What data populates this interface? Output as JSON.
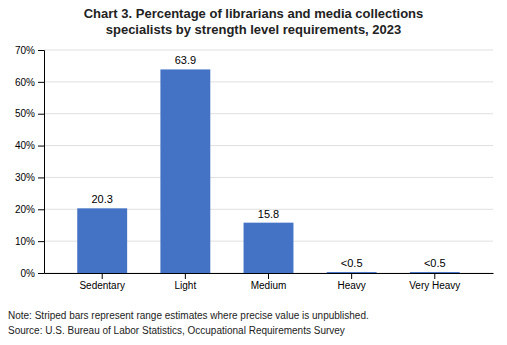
{
  "chart_data": {
    "type": "bar",
    "title": "Chart 3. Percentage of librarians and media collections\nspecialists by strength level requirements, 2023",
    "categories": [
      "Sedentary",
      "Light",
      "Medium",
      "Heavy",
      "Very Heavy"
    ],
    "values": [
      20.3,
      63.9,
      15.8,
      0.3,
      0.3
    ],
    "value_labels": [
      "20.3",
      "63.9",
      "15.8",
      "<0.5",
      "<0.5"
    ],
    "data_labels": true,
    "color": "#4472C4",
    "ylim": [
      0,
      70
    ],
    "yticks": [
      {
        "value": 0,
        "label": "0%"
      },
      {
        "value": 10,
        "label": "10%"
      },
      {
        "value": 20,
        "label": "20%"
      },
      {
        "value": 30,
        "label": "30%"
      },
      {
        "value": 40,
        "label": "40%"
      },
      {
        "value": 50,
        "label": "50%"
      },
      {
        "value": 60,
        "label": "60%"
      },
      {
        "value": 70,
        "label": "70%"
      }
    ],
    "grid": true,
    "annotations": [
      "Note: Striped bars represent range estimates where precise value is unpublished.",
      "Source: U.S. Bureau of Labor Statistics, Occupational Requirements Survey"
    ]
  }
}
